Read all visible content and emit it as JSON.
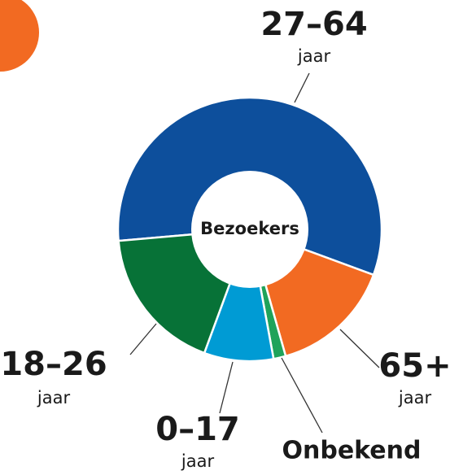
{
  "chart_data": {
    "type": "donut",
    "center_label": "Bezoekers",
    "categories": [
      "27–64",
      "65+",
      "Onbekend",
      "0–17",
      "18–26"
    ],
    "unit_labels": [
      "jaar",
      "jaar",
      null,
      "jaar",
      "jaar"
    ],
    "values": [
      57,
      15,
      1.5,
      8.5,
      18
    ],
    "colors": [
      "#0d4f9c",
      "#f26a22",
      "#1fa35a",
      "#009bd4",
      "#077237"
    ]
  }
}
